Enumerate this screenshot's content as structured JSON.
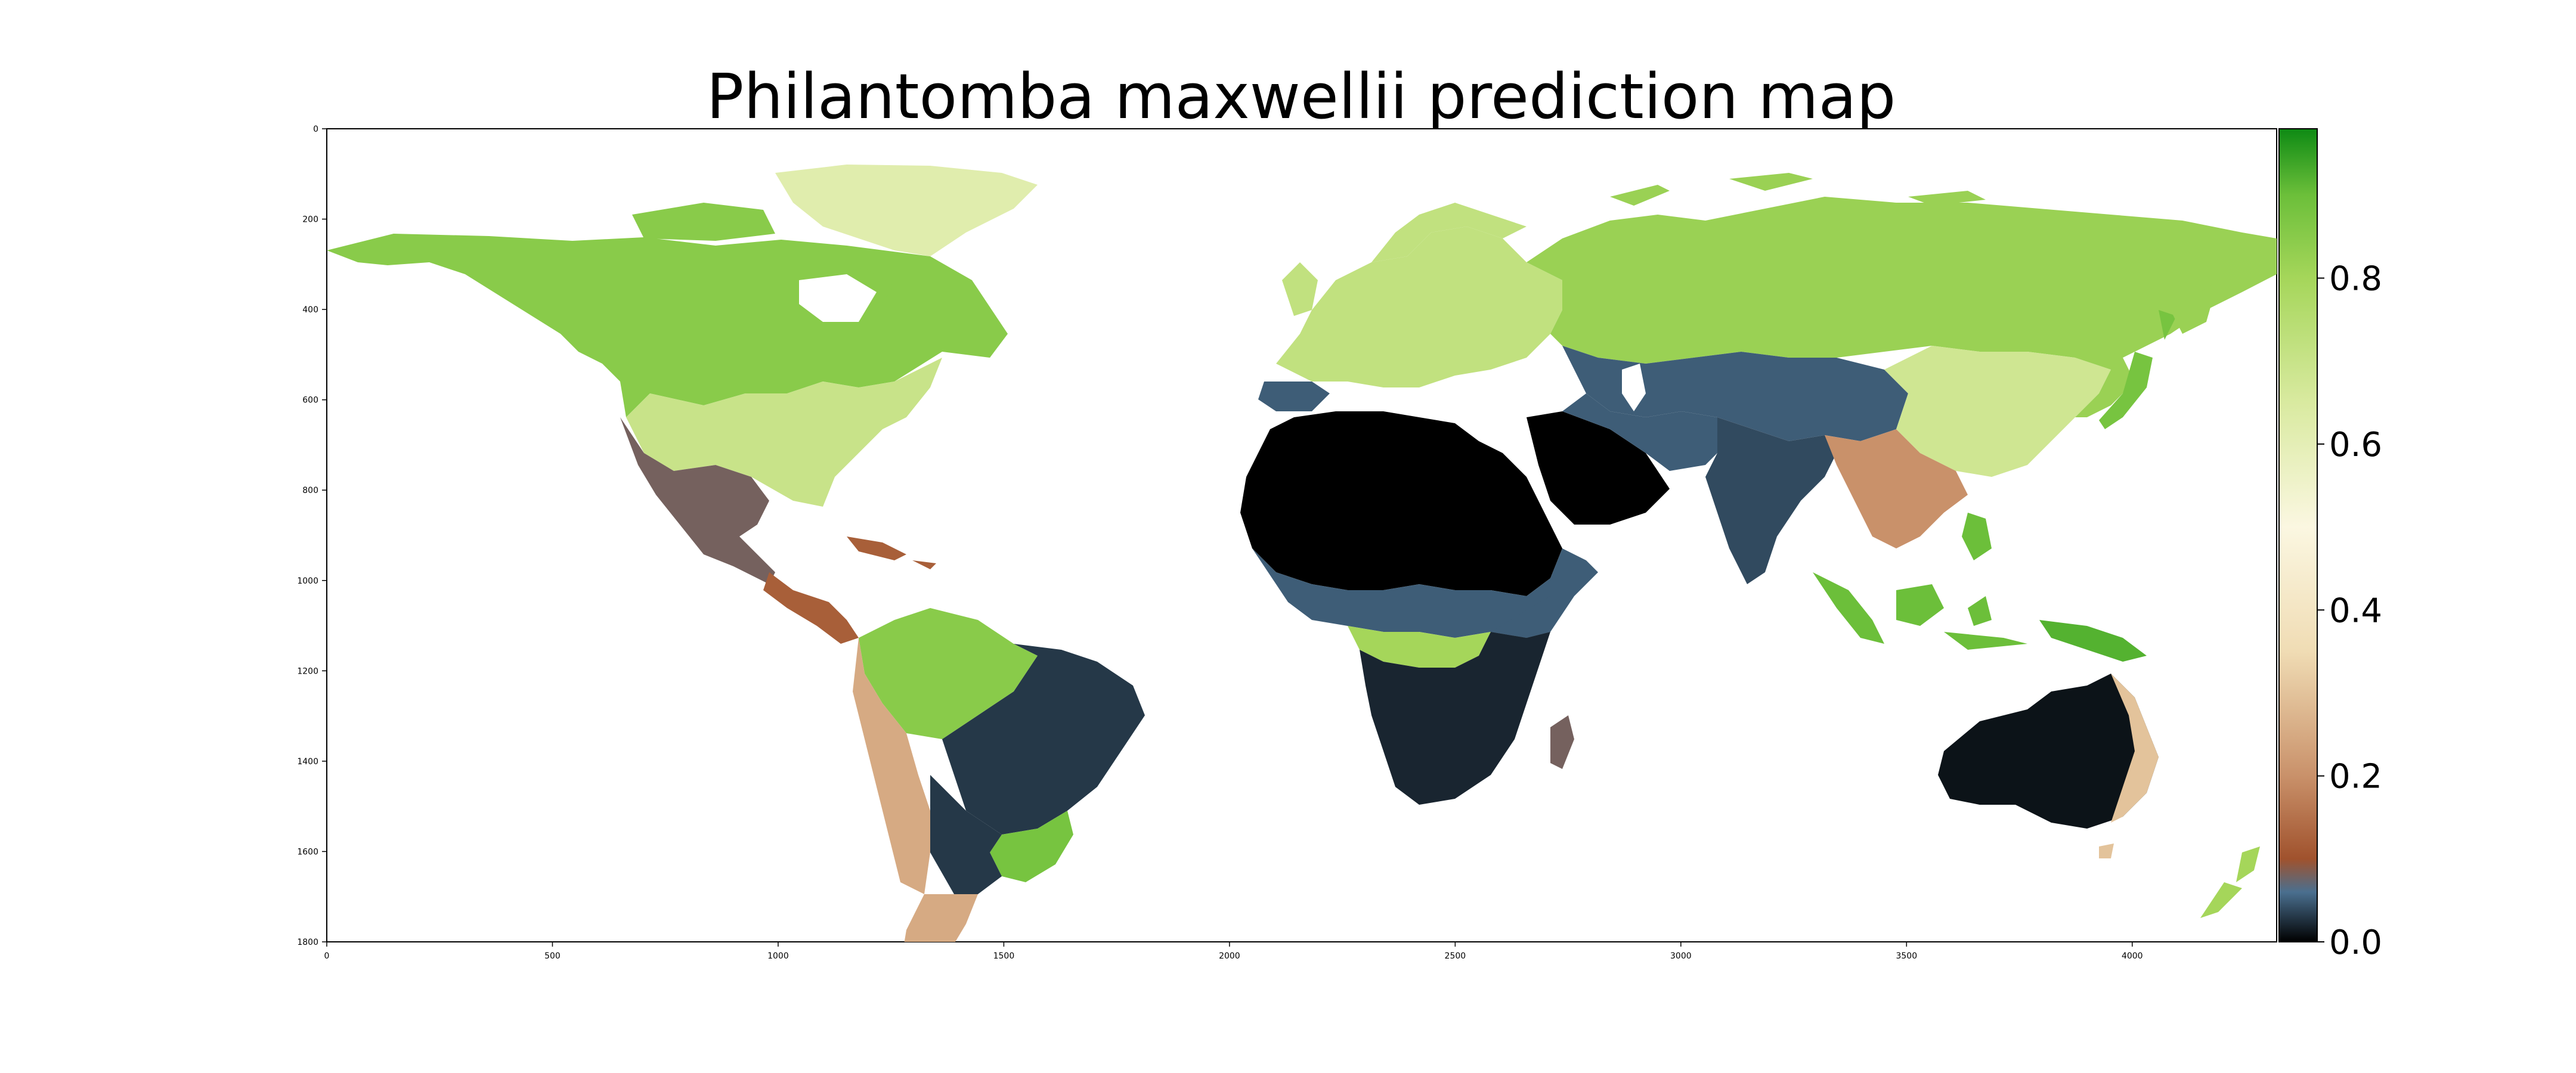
{
  "title": "Philantomba maxwellii prediction map",
  "map": {
    "x_ticks": [
      "0",
      "500",
      "1000",
      "1500",
      "2000",
      "2500",
      "3000",
      "3500",
      "4000"
    ],
    "x_tick_values": [
      0,
      500,
      1000,
      1500,
      2000,
      2500,
      3000,
      3500,
      4000
    ],
    "y_ticks": [
      "0",
      "200",
      "400",
      "600",
      "800",
      "1000",
      "1200",
      "1400",
      "1600",
      "1800"
    ],
    "y_tick_values": [
      0,
      200,
      400,
      600,
      800,
      1000,
      1200,
      1400,
      1600,
      1800
    ],
    "xlim": [
      0,
      4320
    ],
    "ylim": [
      0,
      1800
    ],
    "background": "#ffffff"
  },
  "colorbar": {
    "ticks": [
      "0.0",
      "0.2",
      "0.4",
      "0.6",
      "0.8"
    ],
    "tick_values": [
      0.0,
      0.2,
      0.4,
      0.6,
      0.8
    ],
    "range": [
      0.0,
      0.98
    ],
    "colormap_stops": [
      {
        "value": 0.0,
        "color": "#000000"
      },
      {
        "value": 0.06,
        "color": "#4a6f8f"
      },
      {
        "value": 0.1,
        "color": "#a0522d"
      },
      {
        "value": 0.2,
        "color": "#c9916a"
      },
      {
        "value": 0.35,
        "color": "#f0dcb4"
      },
      {
        "value": 0.5,
        "color": "#fbf7e1"
      },
      {
        "value": 0.65,
        "color": "#d9eaa0"
      },
      {
        "value": 0.8,
        "color": "#a5d65a"
      },
      {
        "value": 0.9,
        "color": "#6cbf3a"
      },
      {
        "value": 0.98,
        "color": "#0e8a14"
      }
    ]
  },
  "regions": [
    {
      "name": "Greenland",
      "value": 0.62
    },
    {
      "name": "North America north",
      "value": 0.85
    },
    {
      "name": "North America east",
      "value": 0.7
    },
    {
      "name": "Mexico",
      "value": 0.08
    },
    {
      "name": "Central America",
      "value": 0.12
    },
    {
      "name": "Amazon",
      "value": 0.85
    },
    {
      "name": "South America east",
      "value": 0.03
    },
    {
      "name": "Southern Brazil",
      "value": 0.88
    },
    {
      "name": "Patagonia",
      "value": 0.25
    },
    {
      "name": "Europe",
      "value": 0.72
    },
    {
      "name": "Siberia",
      "value": 0.82
    },
    {
      "name": "North Africa",
      "value": 0.0
    },
    {
      "name": "Arabia",
      "value": 0.0
    },
    {
      "name": "Central Africa",
      "value": 0.05
    },
    {
      "name": "Congo basin",
      "value": 0.8
    },
    {
      "name": "Southern Africa",
      "value": 0.02
    },
    {
      "name": "Madagascar",
      "value": 0.08
    },
    {
      "name": "Central Asia",
      "value": 0.05
    },
    {
      "name": "India",
      "value": 0.04
    },
    {
      "name": "China",
      "value": 0.68
    },
    {
      "name": "Southeast Asia",
      "value": 0.2
    },
    {
      "name": "Japan",
      "value": 0.88
    },
    {
      "name": "Indonesia",
      "value": 0.9
    },
    {
      "name": "New Guinea",
      "value": 0.92
    },
    {
      "name": "Australia",
      "value": 0.01
    },
    {
      "name": "Australia east",
      "value": 0.3
    },
    {
      "name": "New Zealand",
      "value": 0.8
    }
  ]
}
